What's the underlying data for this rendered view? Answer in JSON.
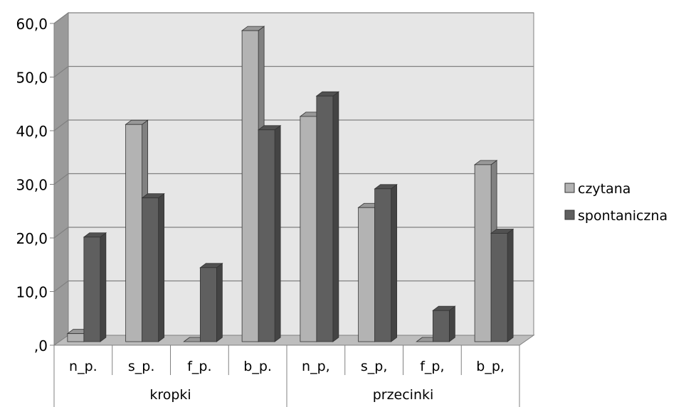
{
  "chart_data": {
    "type": "bar",
    "categories": [
      "n_p.",
      "s_p.",
      "f_p.",
      "b_p.",
      "n_p,",
      "s_p,",
      "f_p,",
      "b_p,"
    ],
    "groups": [
      {
        "label": "kropki",
        "span": 4
      },
      {
        "label": "przecinki",
        "span": 4
      }
    ],
    "series": [
      {
        "name": "czytana",
        "values": [
          1.5,
          40.5,
          0.0,
          58.0,
          42.0,
          25.0,
          0.0,
          33.0
        ],
        "color": "#b3b3b3"
      },
      {
        "name": "spontaniczna",
        "values": [
          19.5,
          26.8,
          13.8,
          39.5,
          45.8,
          28.5,
          5.8,
          20.2
        ],
        "color": "#5f5f5f"
      }
    ],
    "yticks": [
      ",0",
      "10,0",
      "20,0",
      "30,0",
      "40,0",
      "50,0",
      "60,0"
    ],
    "ylim": [
      0,
      60
    ],
    "grid": true,
    "legend_position": "right",
    "style": "3d-clustered-column"
  }
}
